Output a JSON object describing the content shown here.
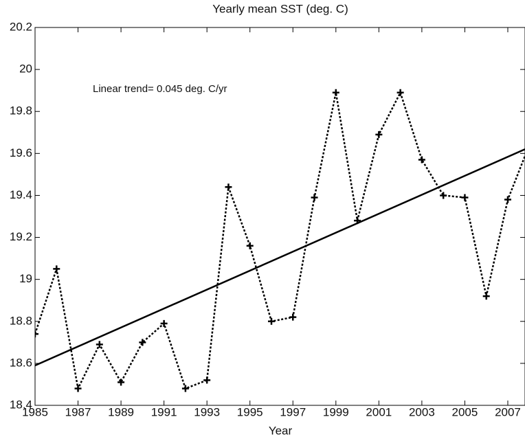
{
  "chart_data": {
    "type": "line",
    "title": "Yearly mean SST (deg. C)",
    "x_label": "Year",
    "x": [
      1985,
      1986,
      1987,
      1988,
      1989,
      1990,
      1991,
      1992,
      1993,
      1994,
      1995,
      1996,
      1997,
      1998,
      1999,
      2000,
      2001,
      2002,
      2003,
      2004,
      2005,
      2006,
      2007,
      2008
    ],
    "series": [
      {
        "values": [
          18.74,
          19.05,
          18.48,
          18.69,
          18.51,
          18.7,
          18.79,
          18.48,
          18.52,
          19.44,
          19.16,
          18.8,
          18.82,
          19.39,
          19.89,
          19.28,
          19.69,
          19.89,
          19.57,
          19.4,
          19.39,
          18.92,
          19.38,
          19.64
        ],
        "color": "#000000"
      }
    ],
    "trend": {
      "label": "Linear trend= 0.045 deg. C/yr",
      "x": [
        1985,
        2007.8
      ],
      "values": [
        18.59,
        19.62
      ],
      "color": "#000000"
    },
    "xlim": [
      1985,
      2007.8
    ],
    "xticks": [
      1985,
      1987,
      1989,
      1991,
      1993,
      1995,
      1997,
      1999,
      2001,
      2003,
      2005,
      2007
    ],
    "ylim": [
      18.4,
      20.2
    ],
    "yticks": [
      18.4,
      18.6,
      18.8,
      19,
      19.2,
      19.4,
      19.6,
      19.8,
      20,
      20.2
    ],
    "grid": false
  }
}
